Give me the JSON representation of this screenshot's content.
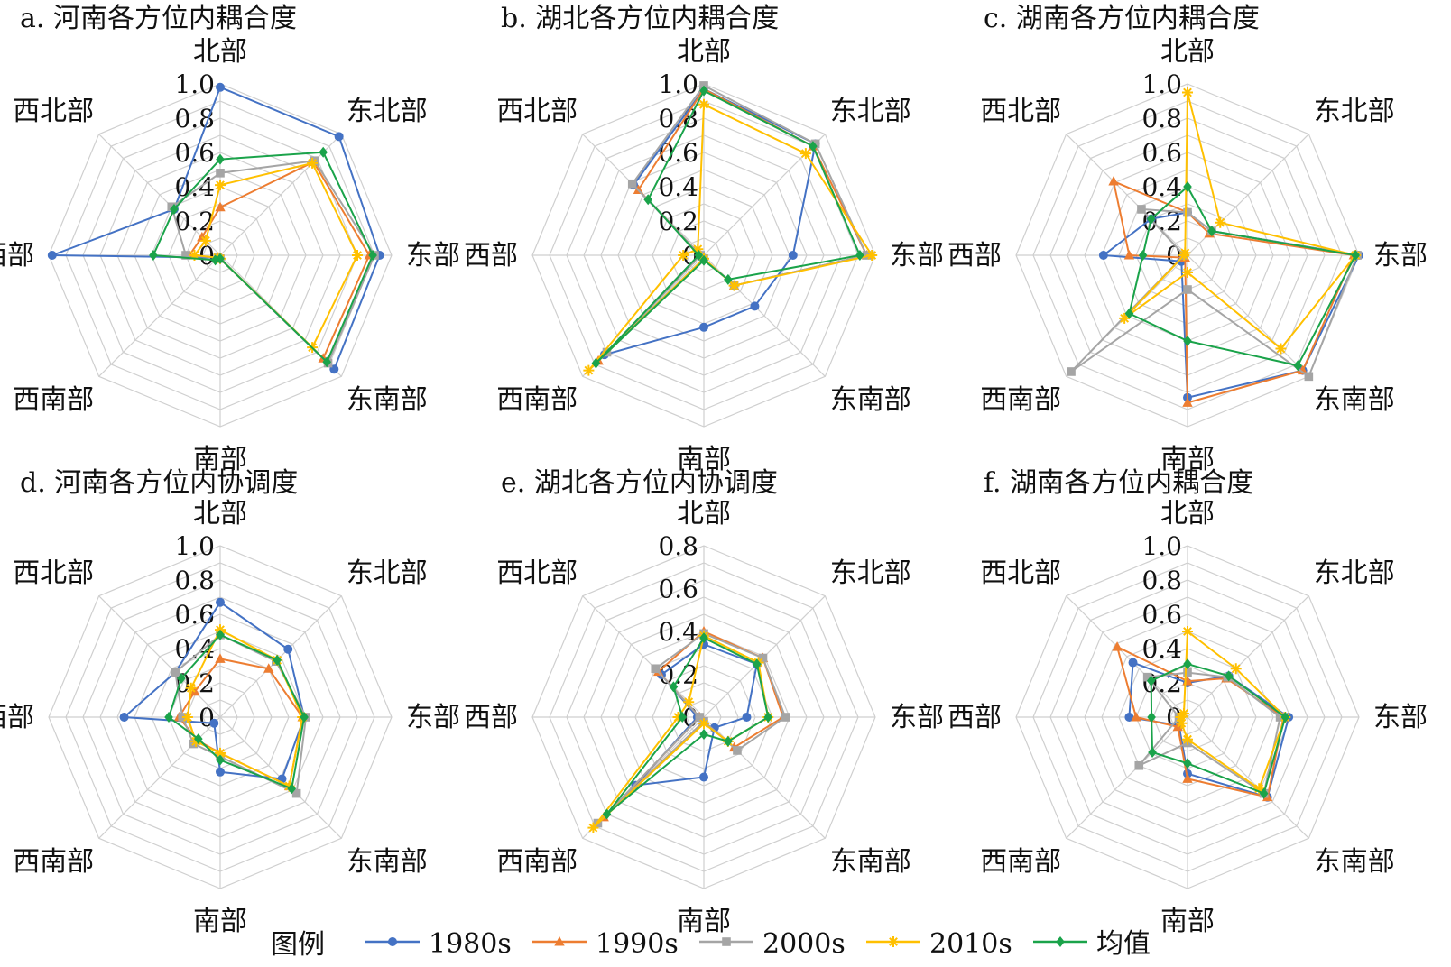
{
  "legend": {
    "title": "图例",
    "entries": [
      "1980s",
      "1990s",
      "2000s",
      "2010s",
      "均值"
    ]
  },
  "chart_data": [
    {
      "type": "radar",
      "title": "a. 河南各方位内耦合度",
      "categories": [
        "北部",
        "东北部",
        "东部",
        "东南部",
        "南部",
        "西南部",
        "西部",
        "西北部"
      ],
      "ticks": [
        "0",
        "0.2",
        "0.4",
        "0.6",
        "0.8",
        "1.0"
      ],
      "rmax": 1.0,
      "series": [
        {
          "name": "1980s",
          "values": [
            0.98,
            0.98,
            0.93,
            0.94,
            0.02,
            0.02,
            0.98,
            0.38
          ]
        },
        {
          "name": "1990s",
          "values": [
            0.28,
            0.77,
            0.87,
            0.85,
            0.02,
            0.02,
            0.18,
            0.15
          ]
        },
        {
          "name": "2000s",
          "values": [
            0.48,
            0.78,
            0.9,
            0.89,
            0.02,
            0.02,
            0.2,
            0.4
          ]
        },
        {
          "name": "2010s",
          "values": [
            0.41,
            0.76,
            0.8,
            0.76,
            0.02,
            0.02,
            0.15,
            0.12
          ]
        },
        {
          "name": "均值",
          "values": [
            0.56,
            0.85,
            0.89,
            0.88,
            0.02,
            0.04,
            0.39,
            0.38
          ]
        }
      ]
    },
    {
      "type": "radar",
      "title": "b. 湖北各方位内耦合度",
      "categories": [
        "北部",
        "东北部",
        "东部",
        "东南部",
        "南部",
        "西南部",
        "西部",
        "西北部"
      ],
      "ticks": [
        "0",
        "0.2",
        "0.4",
        "0.6",
        "0.8",
        "1.0"
      ],
      "rmax": 1.0,
      "series": [
        {
          "name": "1980s",
          "values": [
            0.97,
            0.92,
            0.52,
            0.42,
            0.42,
            0.82,
            0.02,
            0.58
          ]
        },
        {
          "name": "1990s",
          "values": [
            0.97,
            0.9,
            0.95,
            0.25,
            0.02,
            0.87,
            0.02,
            0.54
          ]
        },
        {
          "name": "2000s",
          "values": [
            0.99,
            0.92,
            0.95,
            0.25,
            0.02,
            0.8,
            0.02,
            0.59
          ]
        },
        {
          "name": "2010s",
          "values": [
            0.88,
            0.84,
            0.98,
            0.25,
            0.02,
            0.95,
            0.12,
            0.05
          ]
        },
        {
          "name": "均值",
          "values": [
            0.96,
            0.9,
            0.91,
            0.2,
            0.03,
            0.89,
            0.03,
            0.46
          ]
        }
      ]
    },
    {
      "type": "radar",
      "title": "c. 湖南各方位内耦合度",
      "categories": [
        "北部",
        "东北部",
        "东部",
        "东南部",
        "南部",
        "西南部",
        "西部",
        "西北部"
      ],
      "ticks": [
        "0",
        "0.2",
        "0.4",
        "0.6",
        "0.8",
        "1.0"
      ],
      "rmax": 1.0,
      "series": [
        {
          "name": "1980s",
          "values": [
            0.25,
            0.2,
            1.0,
            0.95,
            0.83,
            0.05,
            0.49,
            0.3
          ]
        },
        {
          "name": "1990s",
          "values": [
            0.25,
            0.18,
            0.97,
            0.95,
            0.86,
            0.02,
            0.34,
            0.61
          ]
        },
        {
          "name": "2000s",
          "values": [
            0.25,
            0.2,
            0.99,
            1.0,
            0.2,
            0.96,
            0.02,
            0.38
          ]
        },
        {
          "name": "2010s",
          "values": [
            0.95,
            0.27,
            0.98,
            0.77,
            0.1,
            0.52,
            0.02,
            0.02
          ]
        },
        {
          "name": "均值",
          "values": [
            0.4,
            0.2,
            0.98,
            0.91,
            0.5,
            0.48,
            0.26,
            0.3
          ]
        }
      ]
    },
    {
      "type": "radar",
      "title": "d. 河南各方位内协调度",
      "categories": [
        "北部",
        "东北部",
        "东部",
        "东南部",
        "南部",
        "西南部",
        "西部",
        "西北部"
      ],
      "ticks": [
        "0",
        "0.2",
        "0.4",
        "0.6",
        "0.8",
        "1.0"
      ],
      "rmax": 1.0,
      "series": [
        {
          "name": "1980s",
          "values": [
            0.67,
            0.56,
            0.49,
            0.51,
            0.32,
            0.05,
            0.56,
            0.37
          ]
        },
        {
          "name": "1990s",
          "values": [
            0.34,
            0.4,
            0.48,
            0.57,
            0.21,
            0.19,
            0.24,
            0.21
          ]
        },
        {
          "name": "2000s",
          "values": [
            0.48,
            0.46,
            0.5,
            0.63,
            0.23,
            0.22,
            0.22,
            0.37
          ]
        },
        {
          "name": "2010s",
          "values": [
            0.51,
            0.47,
            0.48,
            0.57,
            0.21,
            0.2,
            0.19,
            0.24
          ]
        },
        {
          "name": "均值",
          "values": [
            0.48,
            0.47,
            0.49,
            0.59,
            0.25,
            0.18,
            0.3,
            0.32
          ]
        }
      ]
    },
    {
      "type": "radar",
      "title": "e. 湖北各方位内协调度",
      "categories": [
        "北部",
        "东北部",
        "东部",
        "东南部",
        "南部",
        "西南部",
        "西部",
        "西北部"
      ],
      "ticks": [
        "0",
        "0.2",
        "0.4",
        "0.6",
        "0.8"
      ],
      "rmax": 0.8,
      "series": [
        {
          "name": "1980s",
          "values": [
            0.34,
            0.35,
            0.2,
            0.07,
            0.28,
            0.45,
            0.03,
            0.28
          ]
        },
        {
          "name": "1990s",
          "values": [
            0.4,
            0.39,
            0.37,
            0.2,
            0.02,
            0.66,
            0.02,
            0.3
          ]
        },
        {
          "name": "2000s",
          "values": [
            0.39,
            0.39,
            0.38,
            0.22,
            0.02,
            0.7,
            0.02,
            0.32
          ]
        },
        {
          "name": "2010s",
          "values": [
            0.38,
            0.36,
            0.3,
            0.16,
            0.03,
            0.73,
            0.12,
            0.1
          ]
        },
        {
          "name": "均值",
          "values": [
            0.37,
            0.35,
            0.3,
            0.16,
            0.08,
            0.64,
            0.1,
            0.2
          ]
        }
      ]
    },
    {
      "type": "radar",
      "title": "f. 湖南各方位内耦合度",
      "categories": [
        "北部",
        "东北部",
        "东部",
        "东南部",
        "南部",
        "西南部",
        "西部",
        "西北部"
      ],
      "ticks": [
        "0",
        "0.2",
        "0.4",
        "0.6",
        "0.8",
        "1.0"
      ],
      "rmax": 1.0,
      "series": [
        {
          "name": "1980s",
          "values": [
            0.2,
            0.34,
            0.59,
            0.66,
            0.33,
            0.07,
            0.34,
            0.45
          ]
        },
        {
          "name": "1990s",
          "values": [
            0.21,
            0.32,
            0.56,
            0.66,
            0.36,
            0.08,
            0.3,
            0.58
          ]
        },
        {
          "name": "2000s",
          "values": [
            0.26,
            0.33,
            0.54,
            0.63,
            0.15,
            0.4,
            0.05,
            0.33
          ]
        },
        {
          "name": "2010s",
          "values": [
            0.5,
            0.4,
            0.57,
            0.59,
            0.13,
            0.05,
            0.04,
            0.03
          ]
        },
        {
          "name": "均值",
          "values": [
            0.31,
            0.34,
            0.57,
            0.63,
            0.27,
            0.29,
            0.21,
            0.3
          ]
        }
      ]
    }
  ],
  "colors": {
    "1980s": "#4472c4",
    "1990s": "#ed7d31",
    "2000s": "#a5a5a5",
    "2010s": "#ffc000",
    "均值": "#1aa34a",
    "grid": "#cfcfcf"
  },
  "markers": {
    "1980s": "circle",
    "1990s": "triangle",
    "2000s": "square",
    "2010s": "star",
    "均值": "diamond"
  }
}
